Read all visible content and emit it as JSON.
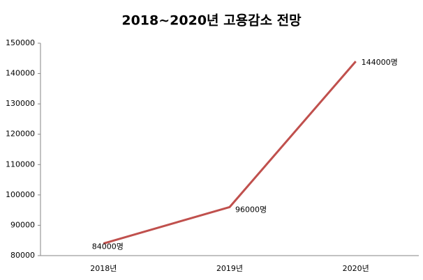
{
  "chart_data": {
    "type": "line",
    "title": "2018~2020년 고용감소 전망",
    "categories": [
      "2018년",
      "2019년",
      "2020년"
    ],
    "series": [
      {
        "name": "고용감소",
        "color": "#c0504d",
        "values": [
          84000,
          96000,
          144000
        ],
        "value_labels": [
          "84000명",
          "96000명",
          "144000명"
        ]
      }
    ],
    "ylim": [
      80000,
      150000
    ],
    "yticks": [
      80000,
      90000,
      100000,
      110000,
      120000,
      130000,
      140000,
      150000
    ],
    "grid": false
  }
}
